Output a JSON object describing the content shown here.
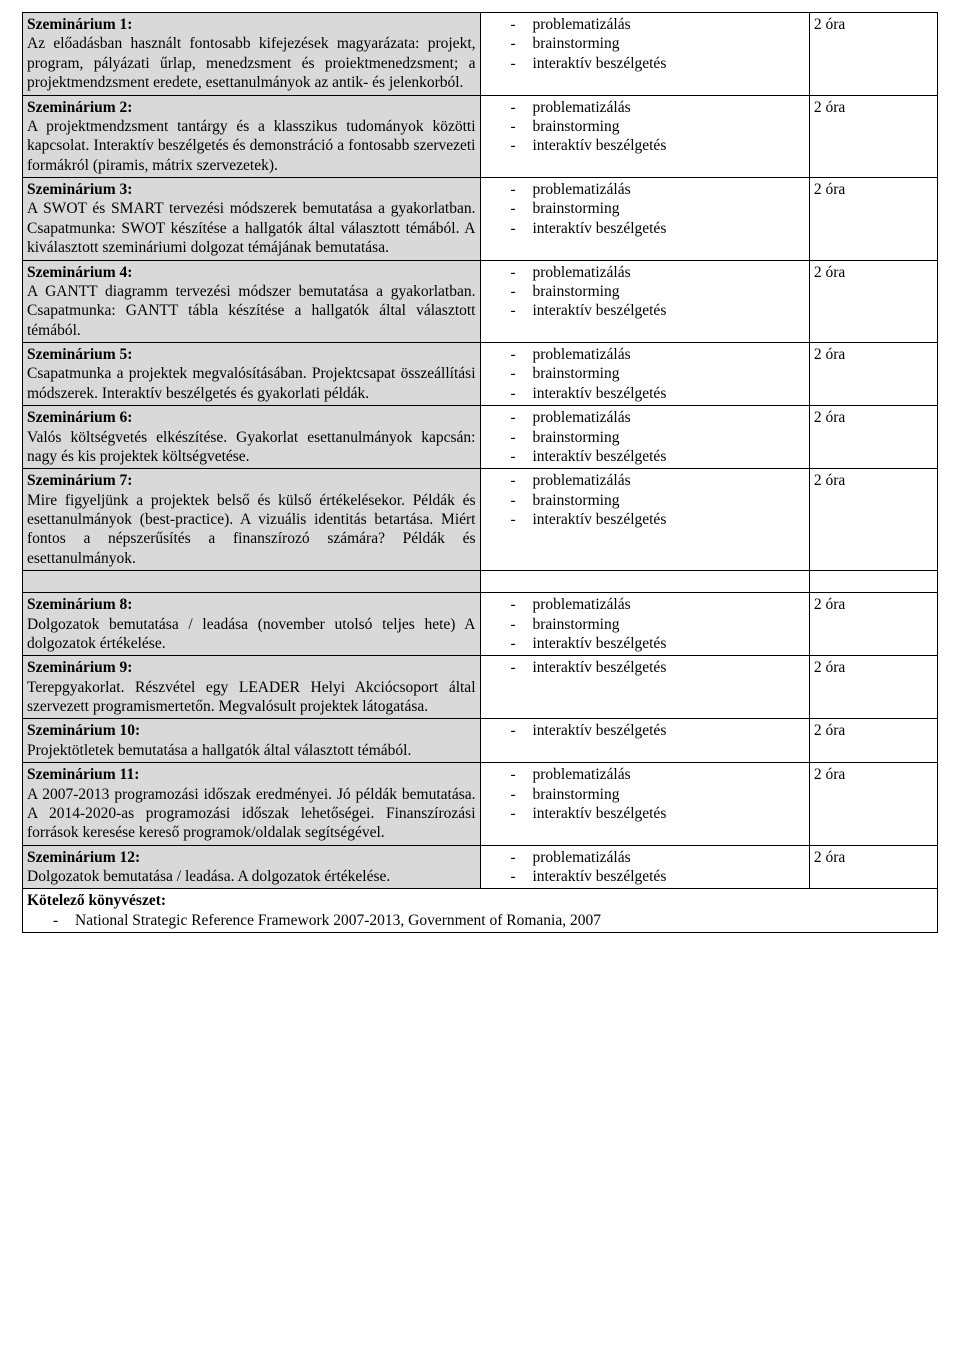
{
  "colors": {
    "row_bg": "#d9d9d9",
    "border": "#000000",
    "text": "#000000",
    "page_bg": "#ffffff"
  },
  "typography": {
    "font_family": "Times New Roman",
    "base_fontsize_pt": 12,
    "bold_weight": 700
  },
  "table": {
    "column_widths": [
      "50%",
      "36%",
      "14%"
    ],
    "rows": [
      {
        "title": "Szeminárium 1:",
        "desc": "Az előadásban használt fontosabb kifejezések magyarázata: projekt, program, pályázati űrlap, menedzsment és proiektmenedzsment; a projektmendzsment eredete, esettanulmányok az antik- és jelenkorból.",
        "methods": [
          "problematizálás",
          "brainstorming",
          "interaktív beszélgetés"
        ],
        "duration": "2 óra"
      },
      {
        "title": "Szeminárium 2:",
        "desc": "A projektmendzsment tantárgy és a klasszikus tudományok közötti kapcsolat. Interaktív beszélgetés és demonstráció a fontosabb szervezeti formákról (piramis, mátrix szervezetek).",
        "methods": [
          "problematizálás",
          "brainstorming",
          "interaktív beszélgetés"
        ],
        "duration": "2 óra"
      },
      {
        "title": "Szeminárium 3:",
        "desc": "A SWOT és SMART tervezési módszerek bemutatása a gyakorlatban. Csapatmunka: SWOT készítése a hallgatók által választott témából. A kiválasztott szemináriumi dolgozat témájának bemutatása.",
        "methods": [
          "problematizálás",
          "brainstorming",
          "interaktív beszélgetés"
        ],
        "duration": "2 óra"
      },
      {
        "title": "Szeminárium 4:",
        "desc": "A GANTT diagramm tervezési módszer bemutatása a gyakorlatban. Csapatmunka: GANTT tábla készítése a hallgatók által választott témából.",
        "methods": [
          "problematizálás",
          "brainstorming",
          "interaktív beszélgetés"
        ],
        "duration": "2 óra"
      },
      {
        "title": "Szeminárium 5:",
        "desc": "Csapatmunka a projektek megvalósításában. Projektcsapat összeállítási módszerek. Interaktív beszélgetés és gyakorlati példák.",
        "methods": [
          "problematizálás",
          "brainstorming",
          "interaktív beszélgetés"
        ],
        "duration": "2 óra"
      },
      {
        "title": "Szeminárium 6:",
        "desc": "Valós költségvetés elkészítése. Gyakorlat esettanulmányok kapcsán: nagy és kis projektek költségvetése.",
        "methods": [
          "problematizálás",
          "brainstorming",
          "interaktív beszélgetés"
        ],
        "duration": "2 óra"
      },
      {
        "title": "Szeminárium 7:",
        "desc": "Mire figyeljünk a projektek belső és külső értékelésekor. Példák és esettanulmányok (best-practice). A vizuális identitás betartása. Miért fontos a népszerűsítés a finanszírozó számára? Példák és esettanulmányok.",
        "methods": [
          "problematizálás",
          "brainstorming",
          "interaktív beszélgetés"
        ],
        "duration": "2 óra"
      },
      {
        "title": "Szeminárium 8:",
        "desc": "Dolgozatok bemutatása / leadása (november utolsó teljes hete) A dolgozatok értékelése.",
        "methods": [
          "problematizálás",
          "brainstorming",
          "interaktív beszélgetés"
        ],
        "duration": "2 óra"
      },
      {
        "title": "Szeminárium 9:",
        "desc": "Terepgyakorlat. Részvétel egy LEADER Helyi Akciócsoport által szervezett programismertetőn. Megvalósult projektek látogatása.",
        "methods": [
          "interaktív beszélgetés"
        ],
        "duration": "2 óra"
      },
      {
        "title": "Szeminárium 10:",
        "desc": "Projektötletek bemutatása a hallgatók által választott témából.",
        "methods": [
          "interaktív beszélgetés"
        ],
        "duration": "2 óra"
      },
      {
        "title": "Szeminárium 11:",
        "desc": "A 2007-2013 programozási időszak eredményei. Jó példák bemutatása. A 2014-2020-as  programozási időszak lehetőségei. Finanszírozási források keresése kereső programok/oldalak segítségével.",
        "methods": [
          "problematizálás",
          "brainstorming",
          "interaktív beszélgetés"
        ],
        "duration": "2 óra"
      },
      {
        "title": "Szeminárium 12:",
        "desc": "Dolgozatok bemutatása / leadása. A dolgozatok értékelése.",
        "methods": [
          "problematizálás",
          "interaktív beszélgetés"
        ],
        "duration": "2 óra"
      }
    ],
    "spacer_after_index": 6
  },
  "bibliography": {
    "title": "Kötelező könyvészet:",
    "items": [
      "National Strategic Reference Framework 2007-2013, Government of Romania, 2007"
    ]
  }
}
